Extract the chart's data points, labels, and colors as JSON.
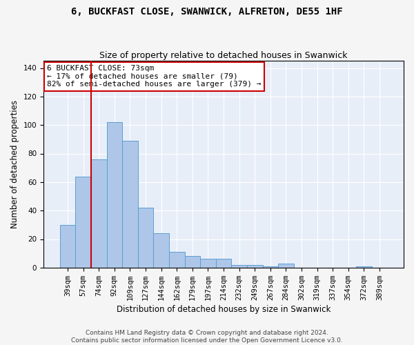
{
  "title": "6, BUCKFAST CLOSE, SWANWICK, ALFRETON, DE55 1HF",
  "subtitle": "Size of property relative to detached houses in Swanwick",
  "xlabel": "Distribution of detached houses by size in Swanwick",
  "ylabel": "Number of detached properties",
  "categories": [
    "39sqm",
    "57sqm",
    "74sqm",
    "92sqm",
    "109sqm",
    "127sqm",
    "144sqm",
    "162sqm",
    "179sqm",
    "197sqm",
    "214sqm",
    "232sqm",
    "249sqm",
    "267sqm",
    "284sqm",
    "302sqm",
    "319sqm",
    "337sqm",
    "354sqm",
    "372sqm",
    "389sqm"
  ],
  "values": [
    30,
    64,
    76,
    102,
    89,
    42,
    24,
    11,
    8,
    6,
    6,
    2,
    2,
    1,
    3,
    0,
    0,
    0,
    0,
    1,
    0
  ],
  "bar_color": "#aec6e8",
  "bar_edge_color": "#5a9fd4",
  "vline_x_index": 2,
  "vline_color": "#cc0000",
  "annotation_line1": "6 BUCKFAST CLOSE: 73sqm",
  "annotation_line2": "← 17% of detached houses are smaller (79)",
  "annotation_line3": "82% of semi-detached houses are larger (379) →",
  "annotation_box_color": "#ffffff",
  "annotation_box_edge": "#cc0000",
  "ylim": [
    0,
    145
  ],
  "yticks": [
    0,
    20,
    40,
    60,
    80,
    100,
    120,
    140
  ],
  "bg_color": "#e8eef8",
  "grid_color": "#ffffff",
  "footer_text": "Contains HM Land Registry data © Crown copyright and database right 2024.\nContains public sector information licensed under the Open Government Licence v3.0.",
  "title_fontsize": 10,
  "subtitle_fontsize": 9,
  "xlabel_fontsize": 8.5,
  "ylabel_fontsize": 8.5,
  "tick_fontsize": 7.5,
  "annotation_fontsize": 8,
  "footer_fontsize": 6.5
}
